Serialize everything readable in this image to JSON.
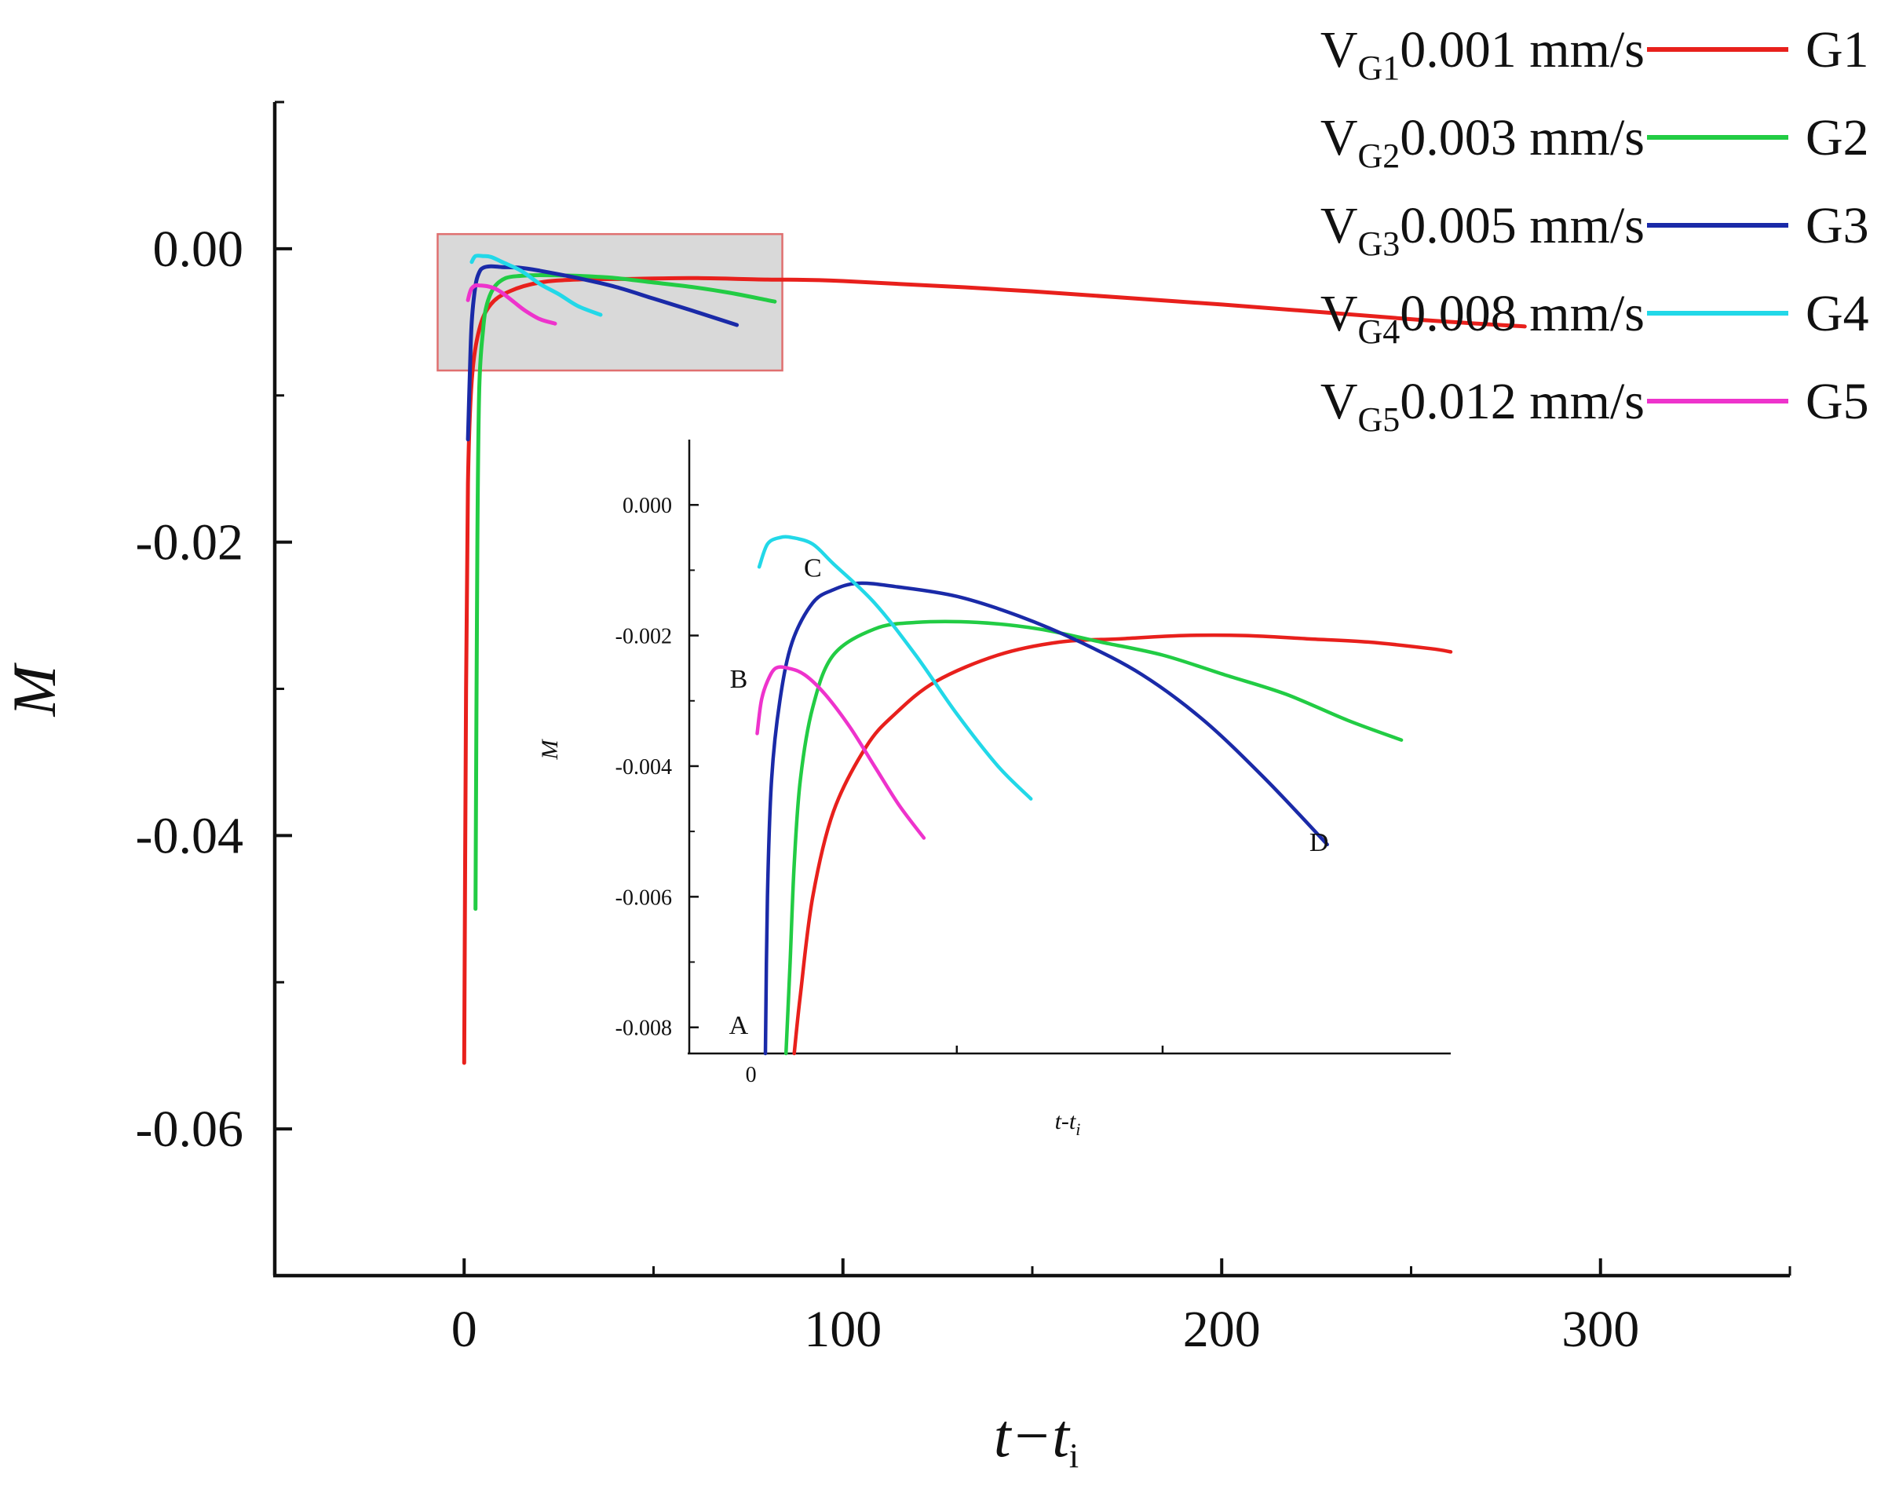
{
  "chart_data": {
    "type": "line",
    "title": "",
    "xlabel": "t−t",
    "xlabel_sub": "i",
    "ylabel": "M",
    "xlim": [
      -50,
      350
    ],
    "ylim": [
      -0.07,
      0.01
    ],
    "x_ticks": [
      0,
      100,
      200,
      300
    ],
    "x_tick_labels": [
      "0",
      "100",
      "200",
      "300"
    ],
    "y_ticks": [
      0.0,
      -0.02,
      -0.04,
      -0.06
    ],
    "y_tick_labels": [
      "0.00",
      "-0.02",
      "-0.04",
      "-0.06"
    ],
    "zoom_region": {
      "x": [
        -7,
        84
      ],
      "y": [
        -0.0083,
        0.001
      ]
    },
    "legend": {
      "position": "top-right",
      "entries": [
        {
          "prefix": "V",
          "sub": "G1",
          "text": "0.001 mm/s",
          "name": "G1",
          "color": "#e8201c"
        },
        {
          "prefix": "V",
          "sub": "G2",
          "text": "0.003 mm/s",
          "name": "G2",
          "color": "#22cc44"
        },
        {
          "prefix": "V",
          "sub": "G3",
          "text": "0.005 mm/s",
          "name": "G3",
          "color": "#1a2aa8"
        },
        {
          "prefix": "V",
          "sub": "G4",
          "text": "0.008 mm/s",
          "name": "G4",
          "color": "#22d8e8"
        },
        {
          "prefix": "V",
          "sub": "G5",
          "text": "0.012 mm/s",
          "name": "G5",
          "color": "#ee33cc"
        }
      ]
    },
    "series": [
      {
        "name": "G1",
        "color": "#e8201c",
        "x": [
          0,
          0.5,
          1,
          2,
          4,
          7,
          12,
          20,
          30,
          45,
          60,
          80,
          100,
          150,
          200,
          250,
          280
        ],
        "y": [
          -0.0555,
          -0.03,
          -0.016,
          -0.009,
          -0.0055,
          -0.0038,
          -0.0029,
          -0.0023,
          -0.0021,
          -0.00205,
          -0.002,
          -0.0021,
          -0.0022,
          -0.0029,
          -0.0038,
          -0.0048,
          -0.0053
        ]
      },
      {
        "name": "G2",
        "color": "#22cc44",
        "x": [
          3,
          3.5,
          4,
          5,
          6,
          8,
          11,
          15,
          20,
          30,
          40,
          50,
          60,
          70,
          80,
          82
        ],
        "y": [
          -0.045,
          -0.02,
          -0.0095,
          -0.0055,
          -0.0038,
          -0.0026,
          -0.002,
          -0.00185,
          -0.0018,
          -0.00185,
          -0.002,
          -0.0023,
          -0.0026,
          -0.003,
          -0.0035,
          -0.0036
        ]
      },
      {
        "name": "G3",
        "color": "#1a2aa8",
        "x": [
          1,
          1.5,
          2,
          3,
          4,
          5,
          7,
          10,
          15,
          20,
          30,
          40,
          50,
          60,
          72
        ],
        "y": [
          -0.013,
          -0.0085,
          -0.005,
          -0.0025,
          -0.0016,
          -0.0013,
          -0.0012,
          -0.00125,
          -0.0013,
          -0.0015,
          -0.002,
          -0.0026,
          -0.0034,
          -0.0042,
          -0.0052
        ]
      },
      {
        "name": "G4",
        "color": "#22d8e8",
        "x": [
          2,
          3,
          5,
          7,
          10,
          15,
          20,
          25,
          30,
          36
        ],
        "y": [
          -0.0009,
          -0.0005,
          -0.0005,
          -0.00055,
          -0.0009,
          -0.0015,
          -0.0024,
          -0.0031,
          -0.0039,
          -0.0045
        ]
      },
      {
        "name": "G5",
        "color": "#ee33cc",
        "x": [
          1,
          1.5,
          2,
          3,
          4,
          6,
          8,
          10,
          13,
          16,
          20,
          24
        ],
        "y": [
          -0.0035,
          -0.003,
          -0.0027,
          -0.0025,
          -0.0025,
          -0.00255,
          -0.0027,
          -0.003,
          -0.0036,
          -0.0042,
          -0.0048,
          -0.0051
        ]
      }
    ],
    "inset": {
      "xlabel": "t-t",
      "xlabel_sub": "i",
      "ylabel": "M",
      "xlim": [
        -1.5,
        17
      ],
      "ylim": [
        -0.0084,
        0.001
      ],
      "x_ticks": [
        0
      ],
      "x_tick_labels": [
        "0"
      ],
      "y_ticks": [
        0.0,
        -0.002,
        -0.004,
        -0.006,
        -0.008
      ],
      "y_tick_labels": [
        "0.000",
        "-0.002",
        "-0.004",
        "-0.006",
        "-0.008"
      ],
      "annotations": [
        {
          "text": "A",
          "x": -0.3,
          "y": -0.0081
        },
        {
          "text": "B",
          "x": -0.3,
          "y": -0.0028
        },
        {
          "text": "C",
          "x": 1.5,
          "y": -0.0011
        },
        {
          "text": "D",
          "x": 13.8,
          "y": -0.0053
        }
      ],
      "series": [
        {
          "name": "G1",
          "color": "#e8201c",
          "x": [
            1.05,
            1.2,
            1.5,
            2,
            2.8,
            3.5,
            4.5,
            6,
            7.5,
            9,
            10.5,
            12,
            13.5,
            15,
            16.5,
            17
          ],
          "y": [
            -0.0084,
            -0.0075,
            -0.006,
            -0.0047,
            -0.0037,
            -0.0032,
            -0.0027,
            -0.0023,
            -0.0021,
            -0.00205,
            -0.002,
            -0.002,
            -0.00205,
            -0.0021,
            -0.0022,
            -0.00225
          ]
        },
        {
          "name": "G2",
          "color": "#22cc44",
          "x": [
            0.85,
            0.95,
            1.05,
            1.2,
            1.5,
            2,
            3,
            4,
            5.5,
            7,
            8.5,
            10,
            11.5,
            13,
            14.5,
            15.8
          ],
          "y": [
            -0.0084,
            -0.007,
            -0.0055,
            -0.0042,
            -0.0031,
            -0.0023,
            -0.0019,
            -0.0018,
            -0.0018,
            -0.0019,
            -0.0021,
            -0.0023,
            -0.0026,
            -0.0029,
            -0.0033,
            -0.0036
          ]
        },
        {
          "name": "G3",
          "color": "#1a2aa8",
          "x": [
            0.35,
            0.4,
            0.5,
            0.7,
            1,
            1.5,
            2,
            2.6,
            3.5,
            5,
            6.5,
            8,
            9.5,
            11,
            12.5,
            14
          ],
          "y": [
            -0.0084,
            -0.006,
            -0.0042,
            -0.003,
            -0.0021,
            -0.0015,
            -0.0013,
            -0.0012,
            -0.00125,
            -0.0014,
            -0.0017,
            -0.0021,
            -0.0026,
            -0.0033,
            -0.0042,
            -0.0052
          ]
        },
        {
          "name": "G4",
          "color": "#22d8e8",
          "x": [
            0.2,
            0.4,
            0.7,
            1,
            1.5,
            2,
            3,
            4,
            5,
            6,
            6.8
          ],
          "y": [
            -0.00095,
            -0.0006,
            -0.0005,
            -0.0005,
            -0.0006,
            -0.0009,
            -0.0015,
            -0.0023,
            -0.0032,
            -0.004,
            -0.0045
          ]
        },
        {
          "name": "G5",
          "color": "#ee33cc",
          "x": [
            0.15,
            0.25,
            0.4,
            0.6,
            0.9,
            1.3,
            1.8,
            2.4,
            3,
            3.6,
            4.2
          ],
          "y": [
            -0.0035,
            -0.003,
            -0.0027,
            -0.0025,
            -0.0025,
            -0.0026,
            -0.0029,
            -0.0034,
            -0.004,
            -0.0046,
            -0.0051
          ]
        }
      ]
    }
  }
}
